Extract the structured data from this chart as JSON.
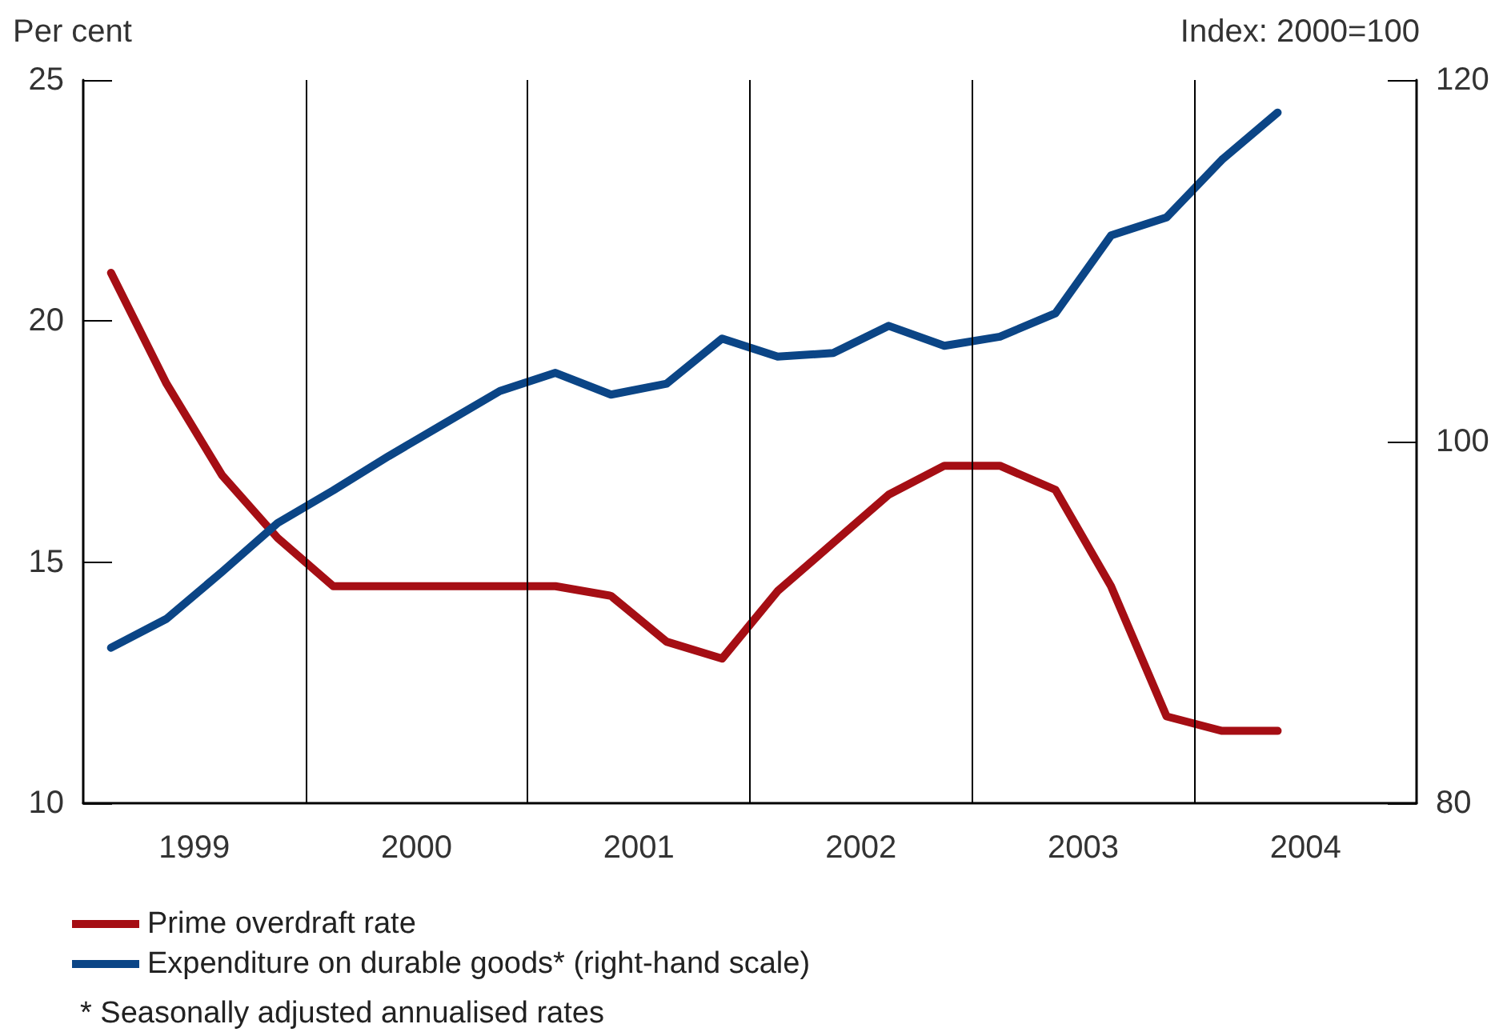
{
  "chart_data": {
    "type": "line",
    "ylabel": "Per cent",
    "y2label": "Index: 2000=100",
    "x": [
      1999.125,
      1999.375,
      1999.625,
      1999.875,
      2000.125,
      2000.375,
      2000.625,
      2000.875,
      2001.125,
      2001.375,
      2001.625,
      2001.875,
      2002.125,
      2002.375,
      2002.625,
      2002.875,
      2003.125,
      2003.375,
      2003.625,
      2003.875,
      2004.125,
      2004.375
    ],
    "xlim": [
      1999,
      2005
    ],
    "xticks": [
      {
        "value": 1999.5,
        "label": "1999"
      },
      {
        "value": 2000.5,
        "label": "2000"
      },
      {
        "value": 2001.5,
        "label": "2001"
      },
      {
        "value": 2002.5,
        "label": "2002"
      },
      {
        "value": 2003.5,
        "label": "2003"
      },
      {
        "value": 2004.5,
        "label": "2004"
      }
    ],
    "ylim": [
      10,
      25
    ],
    "yticks": [
      10,
      15,
      20,
      25
    ],
    "y2lim": [
      80,
      120
    ],
    "y2ticks": [
      80,
      100,
      120
    ],
    "series": [
      {
        "name": "Prime overdraft rate",
        "color": "#a50e14",
        "values": [
          21.0,
          18.7,
          16.8,
          15.5,
          14.5,
          14.5,
          14.5,
          14.5,
          14.5,
          14.3,
          13.35,
          13.0,
          14.4,
          15.4,
          16.4,
          17.0,
          17.0,
          16.5,
          14.5,
          11.8,
          11.5,
          11.5
        ]
      },
      {
        "name": "Expenditure on durable goods* (right-hand scale)",
        "color": "#0b4586",
        "axis": "y2",
        "values": [
          88.6,
          90.2,
          92.8,
          95.5,
          97.3,
          99.2,
          101.0,
          102.8,
          103.8,
          102.6,
          103.2,
          105.7,
          104.7,
          104.9,
          106.4,
          105.3,
          105.8,
          107.1,
          111.4,
          112.4,
          115.6,
          118.2
        ]
      }
    ],
    "ref_lines": [
      {
        "axis": "x",
        "value": 2000,
        "color": "#000000"
      },
      {
        "axis": "x",
        "value": 2001,
        "color": "#000000"
      },
      {
        "axis": "x",
        "value": 2002,
        "color": "#000000"
      },
      {
        "axis": "x",
        "value": 2003,
        "color": "#000000"
      },
      {
        "axis": "x",
        "value": 2004,
        "color": "#000000"
      }
    ],
    "legend": "bottom",
    "marker": "none",
    "line_style": "solid",
    "grid": false,
    "annotations": [
      "* Seasonally adjusted annualised rates"
    ]
  }
}
